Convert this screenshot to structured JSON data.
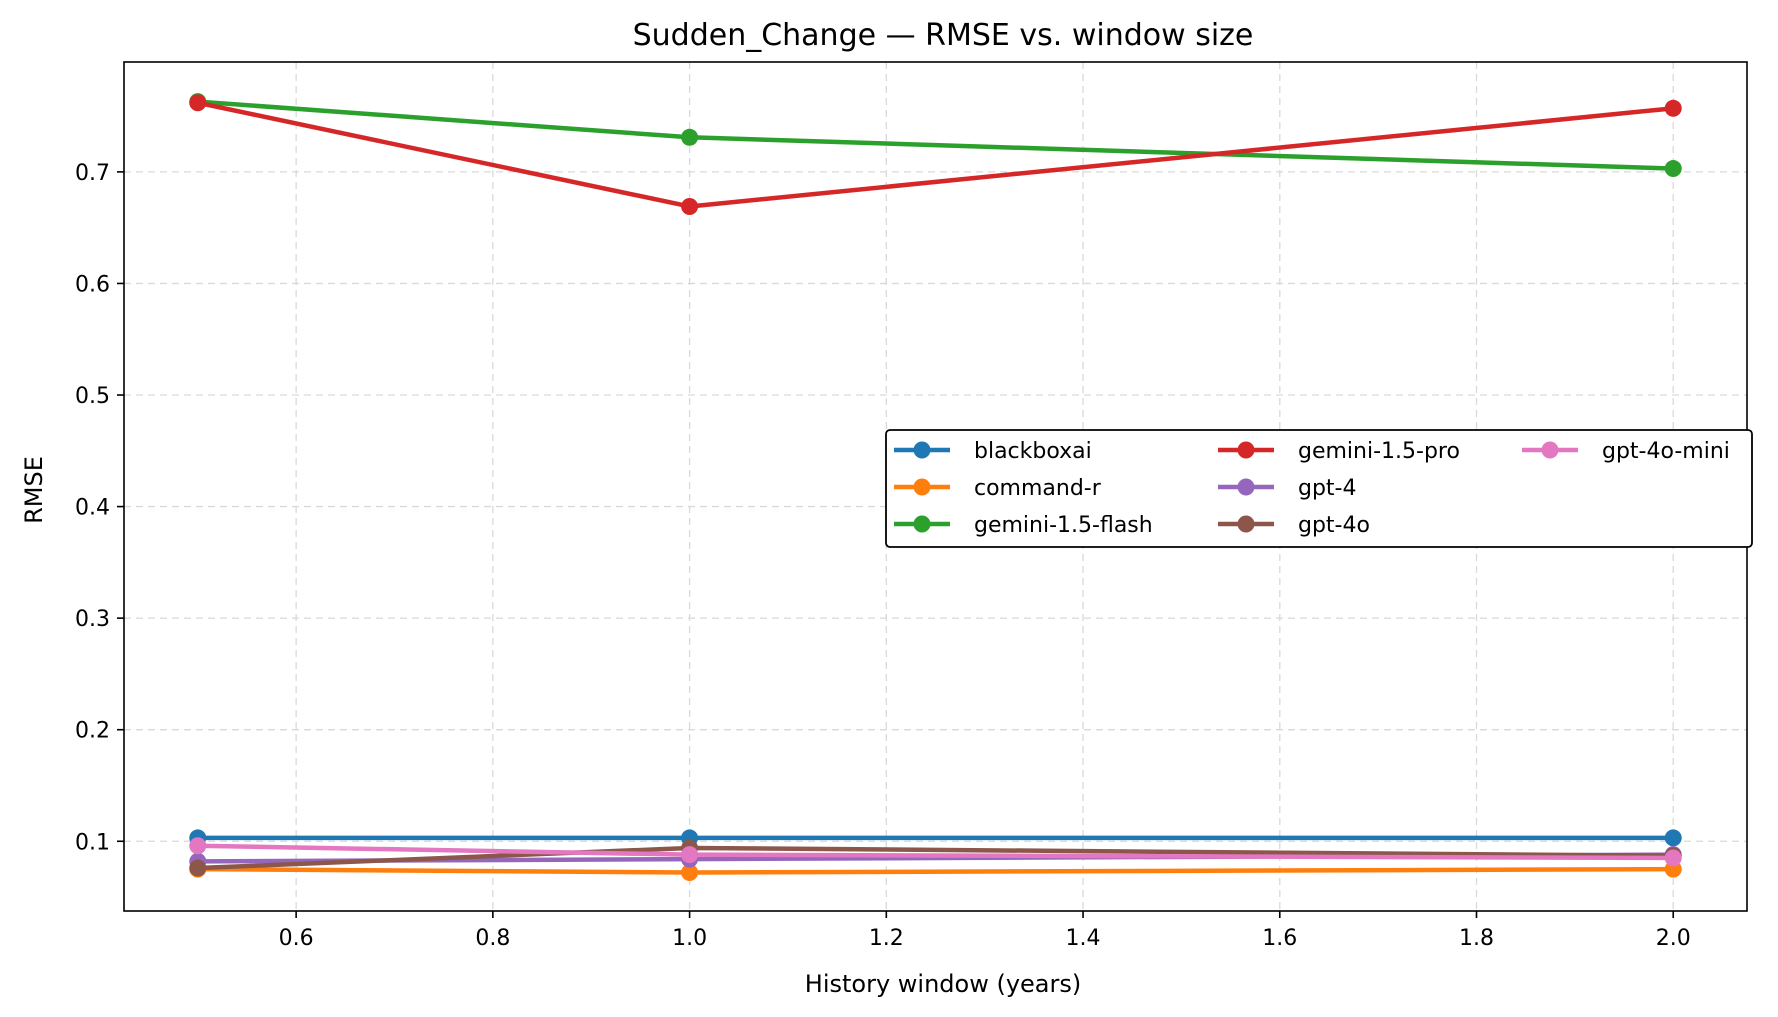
{
  "chart_data": {
    "type": "line",
    "title": "Sudden_Change — RMSE vs. window size",
    "xlabel": "History window (years)",
    "ylabel": "RMSE",
    "x": [
      0.5,
      1.0,
      2.0
    ],
    "xlim": [
      0.425,
      2.075
    ],
    "ylim": [
      0.0375,
      0.7985
    ],
    "xticks": [
      0.6,
      0.8,
      1.0,
      1.2,
      1.4,
      1.6,
      1.8,
      2.0
    ],
    "xtick_labels": [
      "0.6",
      "0.8",
      "1.0",
      "1.2",
      "1.4",
      "1.6",
      "1.8",
      "2.0"
    ],
    "yticks": [
      0.1,
      0.2,
      0.3,
      0.4,
      0.5,
      0.6,
      0.7
    ],
    "ytick_labels": [
      "0.1",
      "0.2",
      "0.3",
      "0.4",
      "0.5",
      "0.6",
      "0.7"
    ],
    "grid": true,
    "legend_position": "center-right",
    "legend_columns": 3,
    "series": [
      {
        "name": "blackboxai",
        "color": "#1f77b4",
        "values": [
          0.103,
          0.103,
          0.103
        ]
      },
      {
        "name": "command-r",
        "color": "#ff7f0e",
        "values": [
          0.075,
          0.072,
          0.075
        ]
      },
      {
        "name": "gemini-1.5-flash",
        "color": "#2ca02c",
        "values": [
          0.763,
          0.731,
          0.703
        ]
      },
      {
        "name": "gemini-1.5-pro",
        "color": "#d62728",
        "values": [
          0.762,
          0.669,
          0.757
        ]
      },
      {
        "name": "gpt-4",
        "color": "#9467bd",
        "values": [
          0.082,
          0.084,
          0.088
        ]
      },
      {
        "name": "gpt-4o",
        "color": "#8c564b",
        "values": [
          0.076,
          0.094,
          0.087
        ]
      },
      {
        "name": "gpt-4o-mini",
        "color": "#e377c2",
        "values": [
          0.096,
          0.088,
          0.085
        ]
      }
    ]
  }
}
